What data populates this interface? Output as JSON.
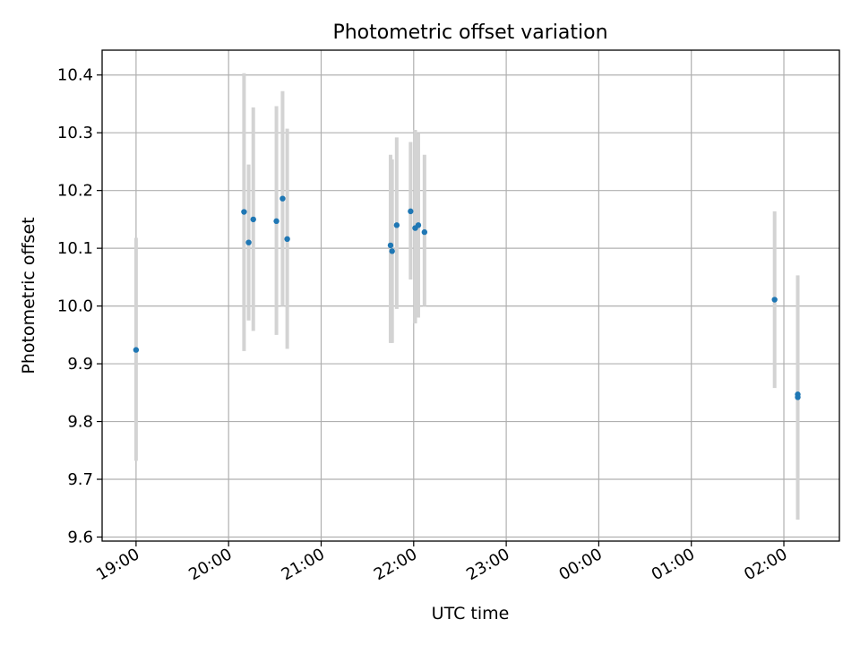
{
  "chart_data": {
    "type": "scatter",
    "title": "Photometric offset variation",
    "xlabel": "UTC time",
    "ylabel": "Photometric offset",
    "x_ticks": [
      "19:00",
      "20:00",
      "21:00",
      "22:00",
      "23:00",
      "00:00",
      "01:00",
      "02:00"
    ],
    "y_ticks": [
      "9.6",
      "9.7",
      "9.8",
      "9.9",
      "10.0",
      "10.1",
      "10.2",
      "10.3",
      "10.4"
    ],
    "ylim": [
      9.593,
      10.443
    ],
    "xlim": [
      "18:38",
      "02:36"
    ],
    "grid": true,
    "marker_color": "#1f77b4",
    "errorbar_color": "#d3d3d3",
    "points": [
      {
        "x": "19:00",
        "y": 9.924,
        "yerr_low": 9.732,
        "yerr_high": 10.118
      },
      {
        "x": "20:10",
        "y": 10.163,
        "yerr_low": 9.922,
        "yerr_high": 10.403
      },
      {
        "x": "20:13",
        "y": 10.11,
        "yerr_low": 9.975,
        "yerr_high": 10.245
      },
      {
        "x": "20:16",
        "y": 10.15,
        "yerr_low": 9.957,
        "yerr_high": 10.344
      },
      {
        "x": "20:31",
        "y": 10.147,
        "yerr_low": 9.95,
        "yerr_high": 10.346
      },
      {
        "x": "20:35",
        "y": 10.186,
        "yerr_low": 10.0,
        "yerr_high": 10.372
      },
      {
        "x": "20:38",
        "y": 10.116,
        "yerr_low": 9.926,
        "yerr_high": 10.307
      },
      {
        "x": "21:45",
        "y": 10.105,
        "yerr_low": 9.936,
        "yerr_high": 10.262
      },
      {
        "x": "21:46",
        "y": 10.095,
        "yerr_low": 9.936,
        "yerr_high": 10.254
      },
      {
        "x": "21:49",
        "y": 10.14,
        "yerr_low": 9.995,
        "yerr_high": 10.292
      },
      {
        "x": "21:58",
        "y": 10.164,
        "yerr_low": 10.046,
        "yerr_high": 10.284
      },
      {
        "x": "22:01",
        "y": 10.135,
        "yerr_low": 9.97,
        "yerr_high": 10.305
      },
      {
        "x": "22:03",
        "y": 10.14,
        "yerr_low": 9.98,
        "yerr_high": 10.3
      },
      {
        "x": "22:07",
        "y": 10.128,
        "yerr_low": 10.0,
        "yerr_high": 10.262
      },
      {
        "x": "01:54",
        "y": 10.011,
        "yerr_low": 9.858,
        "yerr_high": 10.164
      },
      {
        "x": "02:09",
        "y": 9.847,
        "yerr_low": 9.645,
        "yerr_high": 10.05
      },
      {
        "x": "02:09",
        "y": 9.842,
        "yerr_low": 9.63,
        "yerr_high": 10.053
      }
    ]
  }
}
